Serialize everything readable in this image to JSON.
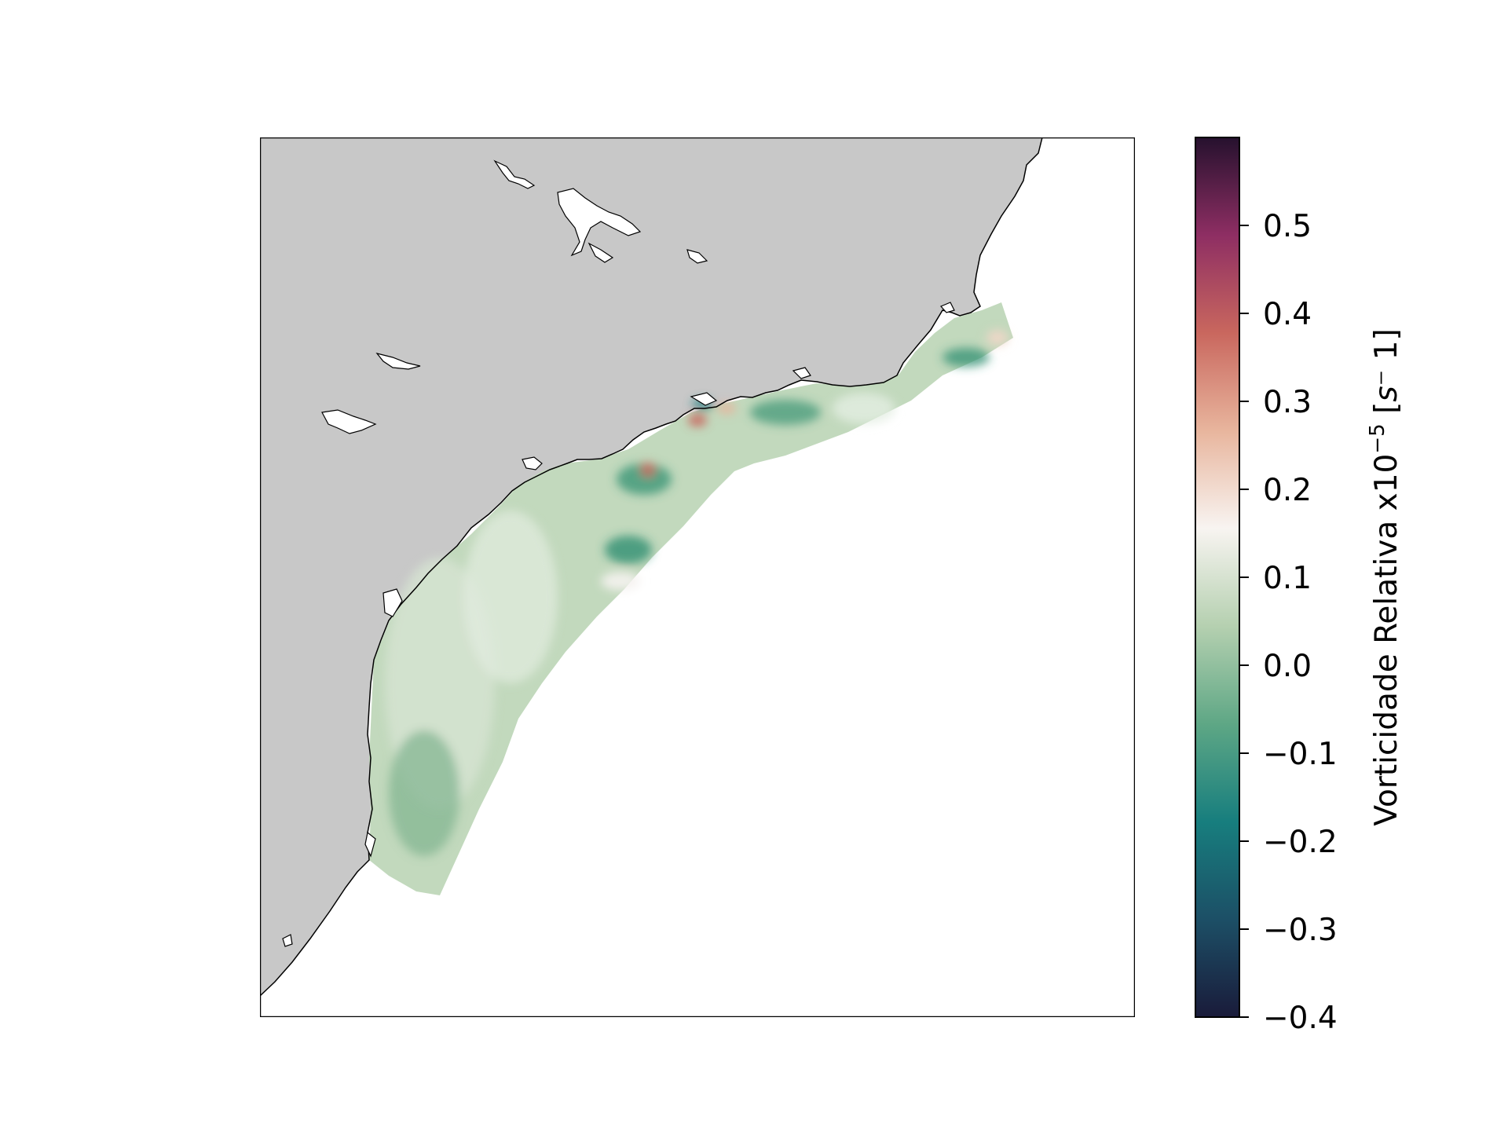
{
  "map": {
    "colors": {
      "land": "#c8c8c8",
      "ocean": "#ffffff",
      "coastline": "#000000",
      "frame": "#000000"
    }
  },
  "colorbar": {
    "label_main": "Vorticidade Relativa x10",
    "label_exponent": "−5",
    "label_unit_open": " [",
    "label_unit_s": "s",
    "label_unit_rest": "⁻ 1]",
    "min": -0.4,
    "max": 0.6,
    "ticks": [
      "0.5",
      "0.4",
      "0.3",
      "0.2",
      "0.1",
      "0.0",
      "−0.1",
      "−0.2",
      "−0.3",
      "−0.4"
    ],
    "tick_values": [
      0.5,
      0.4,
      0.3,
      0.2,
      0.1,
      0.0,
      -0.1,
      -0.2,
      -0.3,
      -0.4
    ],
    "colormap": [
      "#1a1b3a",
      "#1c4f66",
      "#177e7e",
      "#5ea785",
      "#b5d0b0",
      "#f8f4f1",
      "#e8b59d",
      "#c9675e",
      "#8e2e63",
      "#26112e"
    ]
  }
}
